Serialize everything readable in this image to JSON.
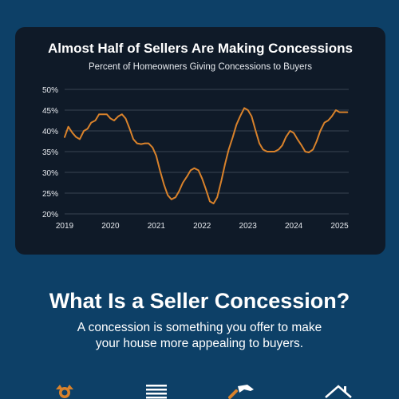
{
  "chart_card": {
    "title": "Almost Half of Sellers Are Making Concessions",
    "subtitle": "Percent of Homeowners Giving Concessions to Buyers"
  },
  "chart_data": {
    "type": "line",
    "title": "Almost Half of Sellers Are Making Concessions",
    "subtitle": "Percent of Homeowners Giving Concessions to Buyers",
    "xlabel": "",
    "ylabel": "",
    "xlim": [
      2019.0,
      2025.2
    ],
    "ylim": [
      20,
      50
    ],
    "yticks": [
      "20%",
      "25%",
      "30%",
      "35%",
      "40%",
      "45%",
      "50%"
    ],
    "ytick_values": [
      20,
      25,
      30,
      35,
      40,
      45,
      50
    ],
    "xticks": [
      "2019",
      "2020",
      "2021",
      "2022",
      "2023",
      "2024",
      "2025"
    ],
    "xtick_values": [
      2019,
      2020,
      2021,
      2022,
      2023,
      2024,
      2025
    ],
    "grid": true,
    "line_color": "#d9822b",
    "series": [
      {
        "x": [
          2019.0,
          2019.08,
          2019.17,
          2019.25,
          2019.33,
          2019.42,
          2019.5,
          2019.58,
          2019.67,
          2019.75,
          2019.83,
          2019.92,
          2020.0,
          2020.08,
          2020.17,
          2020.25,
          2020.33,
          2020.42,
          2020.5,
          2020.58,
          2020.67,
          2020.75,
          2020.83,
          2020.92,
          2021.0,
          2021.08,
          2021.17,
          2021.25,
          2021.33,
          2021.42,
          2021.5,
          2021.58,
          2021.67,
          2021.75,
          2021.83,
          2021.92,
          2022.0,
          2022.08,
          2022.17,
          2022.25,
          2022.33,
          2022.42,
          2022.5,
          2022.58,
          2022.67,
          2022.75,
          2022.83,
          2022.92,
          2023.0,
          2023.08,
          2023.17,
          2023.25,
          2023.33,
          2023.42,
          2023.5,
          2023.58,
          2023.67,
          2023.75,
          2023.83,
          2023.92,
          2024.0,
          2024.08,
          2024.17,
          2024.25,
          2024.33,
          2024.42,
          2024.5,
          2024.58,
          2024.67,
          2024.75,
          2024.83,
          2024.92,
          2025.0,
          2025.08,
          2025.17
        ],
        "values": [
          38.5,
          41,
          39.5,
          38.5,
          38,
          40,
          40.5,
          42,
          42.5,
          44,
          44,
          44,
          43,
          42.5,
          43.5,
          44,
          43,
          40.5,
          38,
          37,
          36.8,
          37,
          37,
          36,
          34,
          30.5,
          27,
          24.5,
          23.5,
          24,
          25.5,
          27.5,
          29,
          30.5,
          31,
          30.5,
          28.5,
          26,
          23,
          22.5,
          24,
          28,
          32,
          35.5,
          38.5,
          41.5,
          43.5,
          45.5,
          45,
          43.5,
          40,
          37,
          35.5,
          35,
          35,
          35,
          35.5,
          36.5,
          38.5,
          40,
          39.5,
          38,
          36.5,
          35,
          34.8,
          35.5,
          37.5,
          40,
          42,
          42.5,
          43.5,
          45,
          44.5,
          44.5,
          44.5
        ]
      }
    ]
  },
  "section": {
    "title": "What Is a Seller Concession?",
    "body_line1": "A concession is something you offer to make",
    "body_line2": "your house more appealing to buyers."
  },
  "icons": [
    "award-icon",
    "list-icon",
    "hammer-icon",
    "house-icon"
  ],
  "colors": {
    "background": "#0d4067",
    "card": "#0f1a28",
    "accent": "#d9822b"
  }
}
